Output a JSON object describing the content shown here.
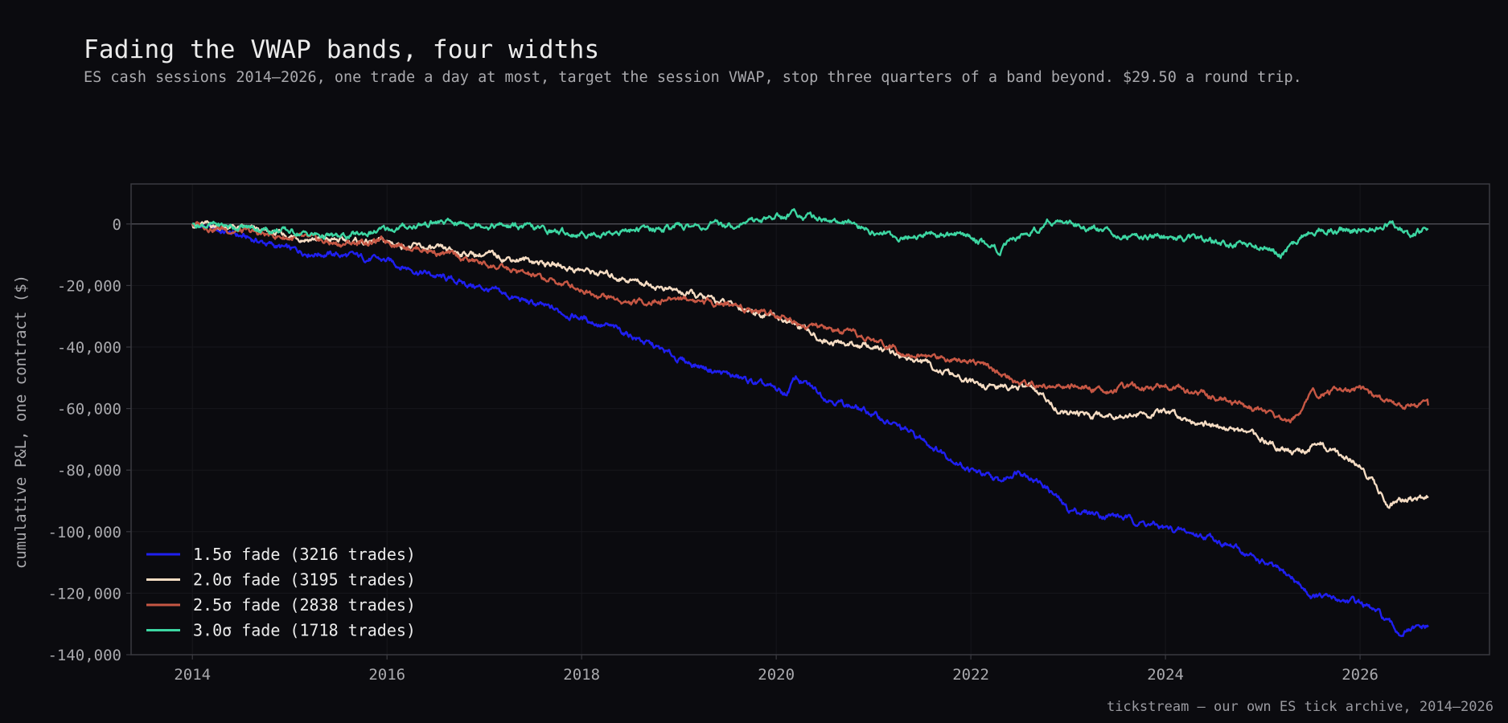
{
  "title": "Fading the VWAP bands, four widths",
  "subtitle": "ES cash sessions 2014–2026, one trade a day at most, target the session VWAP, stop three quarters of a band beyond. $29.50 a round trip.",
  "footer": "tickstream — our own ES tick archive, 2014–2026",
  "colors": {
    "background": "#0b0b0f",
    "axis_frame": "#3a3a40",
    "zero_line": "#4a4a50",
    "grid": "#17171c",
    "text": "#a9a9ad"
  },
  "chart_data": {
    "type": "line",
    "title": "Fading the VWAP bands, four widths",
    "xlabel": "",
    "ylabel": "cumulative P&L, one contract ($)",
    "xlim": [
      2013.37,
      2027.33
    ],
    "ylim": [
      -140000,
      13000
    ],
    "x_ticks": [
      2014,
      2016,
      2018,
      2020,
      2022,
      2024,
      2026
    ],
    "y_ticks": [
      0,
      -20000,
      -40000,
      -60000,
      -80000,
      -100000,
      -120000,
      -140000
    ],
    "y_tick_labels": [
      "0",
      "-20,000",
      "-40,000",
      "-60,000",
      "-80,000",
      "-100,000",
      "-120,000",
      "-140,000"
    ],
    "grid": true,
    "legend_position": "lower-left",
    "series": [
      {
        "name": "1.5σ fade  (3216 trades)",
        "color": "#1f1ff0",
        "x": [
          2014.0,
          2014.5,
          2015.0,
          2015.5,
          2016.0,
          2016.5,
          2017.0,
          2017.5,
          2018.0,
          2018.5,
          2019.0,
          2019.5,
          2020.0,
          2020.1,
          2020.2,
          2020.5,
          2021.0,
          2021.5,
          2022.0,
          2022.3,
          2022.5,
          2022.8,
          2023.0,
          2023.5,
          2024.0,
          2024.5,
          2025.0,
          2025.3,
          2025.5,
          2026.0,
          2026.2,
          2026.4,
          2026.7
        ],
        "y": [
          0,
          -4000,
          -8500,
          -10000,
          -12000,
          -17000,
          -21000,
          -26000,
          -30500,
          -36000,
          -44000,
          -49000,
          -54000,
          -55500,
          -50000,
          -56000,
          -62000,
          -70000,
          -80000,
          -84000,
          -79500,
          -86000,
          -93000,
          -95000,
          -99000,
          -102000,
          -110000,
          -115000,
          -121000,
          -123000,
          -127000,
          -133000,
          -131000
        ]
      },
      {
        "name": "2.0σ fade  (3195 trades)",
        "color": "#f5dcc3",
        "x": [
          2014.0,
          2014.5,
          2015.0,
          2015.5,
          2016.0,
          2016.5,
          2017.0,
          2017.5,
          2018.0,
          2018.5,
          2019.0,
          2019.5,
          2020.0,
          2020.2,
          2020.5,
          2021.0,
          2021.5,
          2022.0,
          2022.3,
          2022.6,
          2022.8,
          2023.0,
          2023.5,
          2024.0,
          2024.5,
          2025.0,
          2025.3,
          2025.6,
          2026.0,
          2026.3,
          2026.7
        ],
        "y": [
          0,
          -1500,
          -4000,
          -5500,
          -6000,
          -8500,
          -10000,
          -12000,
          -15000,
          -18000,
          -22000,
          -26000,
          -30000,
          -33000,
          -38000,
          -40000,
          -45000,
          -52000,
          -53000,
          -53000,
          -58000,
          -62000,
          -62000,
          -61500,
          -65000,
          -70000,
          -74000,
          -72000,
          -78000,
          -91000,
          -89000
        ]
      },
      {
        "name": "2.5σ fade  (2838 trades)",
        "color": "#c65744",
        "x": [
          2014.0,
          2014.5,
          2015.0,
          2015.5,
          2016.0,
          2016.5,
          2017.0,
          2017.5,
          2018.0,
          2018.5,
          2019.0,
          2019.5,
          2020.0,
          2020.3,
          2020.5,
          2021.0,
          2021.5,
          2022.0,
          2022.5,
          2023.0,
          2023.5,
          2024.0,
          2024.5,
          2025.0,
          2025.3,
          2025.5,
          2026.0,
          2026.3,
          2026.7
        ],
        "y": [
          0,
          -2500,
          -4500,
          -6500,
          -5500,
          -9000,
          -13000,
          -17000,
          -21000,
          -26000,
          -24000,
          -26000,
          -29000,
          -33000,
          -34000,
          -38000,
          -43000,
          -44000,
          -52000,
          -53000,
          -54000,
          -52000,
          -56000,
          -61000,
          -64000,
          -55000,
          -54000,
          -58000,
          -59000
        ]
      },
      {
        "name": "3.0σ fade  (1718 trades)",
        "color": "#3dd6a2",
        "x": [
          2014.0,
          2014.5,
          2015.0,
          2015.5,
          2016.0,
          2016.5,
          2017.0,
          2017.5,
          2018.0,
          2018.5,
          2019.0,
          2019.5,
          2020.0,
          2020.2,
          2020.6,
          2021.0,
          2021.3,
          2021.6,
          2022.0,
          2022.3,
          2022.6,
          2022.8,
          2023.0,
          2023.5,
          2024.0,
          2024.5,
          2025.0,
          2025.2,
          2025.5,
          2026.0,
          2026.3,
          2026.5,
          2026.7
        ],
        "y": [
          0,
          -1000,
          -2500,
          -4500,
          -2000,
          500,
          0,
          -1500,
          -3500,
          -2000,
          -1000,
          -500,
          2500,
          3500,
          1000,
          -2500,
          -4500,
          -3000,
          -4000,
          -8500,
          -3000,
          1000,
          0,
          -3000,
          -4000,
          -6000,
          -7500,
          -9500,
          -1500,
          -2000,
          0,
          -3500,
          -1500
        ]
      }
    ]
  }
}
